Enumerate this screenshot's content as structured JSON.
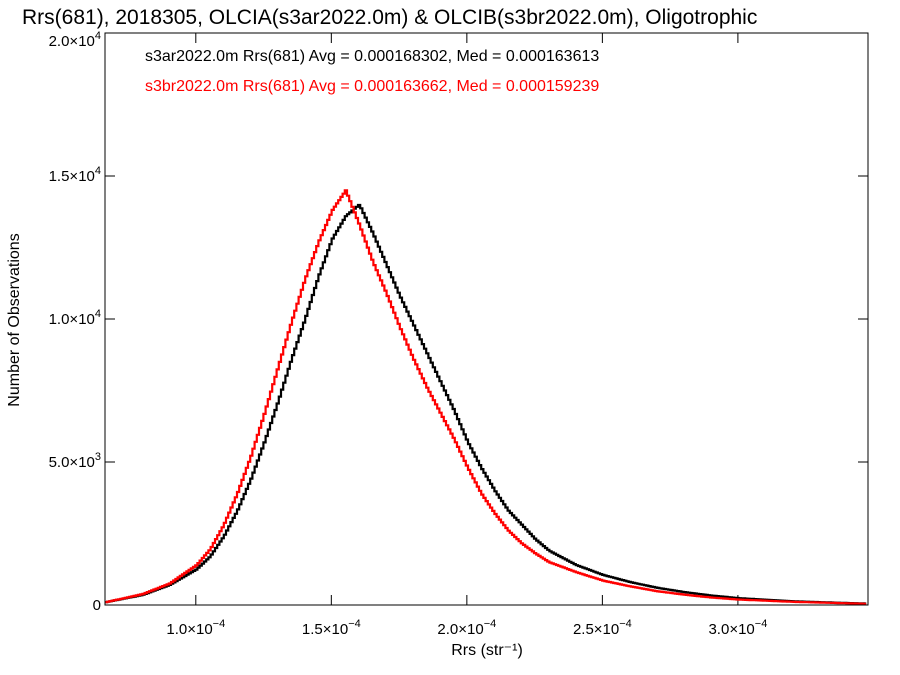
{
  "chart_data": {
    "type": "line",
    "title": "Rrs(681), 2018305, OLCIA(s3ar2022.0m) & OLCIB(s3br2022.0m), Oligotrophic",
    "xlabel": "Rrs (str⁻¹)",
    "ylabel": "Number of Observations",
    "xlim": [
      6.65e-05,
      0.000348
    ],
    "ylim": [
      0,
      20000
    ],
    "grid": false,
    "legend_position": "top-left",
    "x_ticks": [
      {
        "value": 0.0001,
        "mantissa": "1.0",
        "exp": "−4"
      },
      {
        "value": 0.00015,
        "mantissa": "1.5",
        "exp": "−4"
      },
      {
        "value": 0.0002,
        "mantissa": "2.0",
        "exp": "−4"
      },
      {
        "value": 0.00025,
        "mantissa": "2.5",
        "exp": "−4"
      },
      {
        "value": 0.0003,
        "mantissa": "3.0",
        "exp": "−4"
      }
    ],
    "y_ticks": [
      {
        "value": 0,
        "mantissa": "0",
        "exp": ""
      },
      {
        "value": 5000,
        "mantissa": "5.0",
        "exp": "3"
      },
      {
        "value": 10000,
        "mantissa": "1.0",
        "exp": "4"
      },
      {
        "value": 15000,
        "mantissa": "1.5",
        "exp": "4"
      },
      {
        "value": 20000,
        "mantissa": "2.0",
        "exp": "4"
      }
    ],
    "series": [
      {
        "name": "s3ar2022.0m Rrs(681)",
        "label": "s3ar2022.0m Rrs(681) Avg = 0.000168302, Med = 0.000163613",
        "color": "#000000",
        "points": [
          [
            6.65e-05,
            100
          ],
          [
            8e-05,
            350
          ],
          [
            9e-05,
            700
          ],
          [
            0.0001,
            1250
          ],
          [
            0.000105,
            1700
          ],
          [
            0.00011,
            2400
          ],
          [
            0.000115,
            3300
          ],
          [
            0.00012,
            4400
          ],
          [
            0.000125,
            5700
          ],
          [
            0.00013,
            7100
          ],
          [
            0.000135,
            8600
          ],
          [
            0.00014,
            10000
          ],
          [
            0.000145,
            11500
          ],
          [
            0.00015,
            12800
          ],
          [
            0.000155,
            13600
          ],
          [
            0.00016,
            14000
          ],
          [
            0.000165,
            13000
          ],
          [
            0.00017,
            11900
          ],
          [
            0.000175,
            10800
          ],
          [
            0.00018,
            9800
          ],
          [
            0.000185,
            8800
          ],
          [
            0.00019,
            7800
          ],
          [
            0.000195,
            6800
          ],
          [
            0.0002,
            5700
          ],
          [
            0.000205,
            4800
          ],
          [
            0.00021,
            4000
          ],
          [
            0.000215,
            3300
          ],
          [
            0.00022,
            2800
          ],
          [
            0.000225,
            2300
          ],
          [
            0.00023,
            1900
          ],
          [
            0.00024,
            1400
          ],
          [
            0.00025,
            1050
          ],
          [
            0.00026,
            800
          ],
          [
            0.00027,
            600
          ],
          [
            0.00028,
            450
          ],
          [
            0.00029,
            330
          ],
          [
            0.0003,
            240
          ],
          [
            0.00032,
            130
          ],
          [
            0.00034,
            70
          ],
          [
            0.000348,
            50
          ]
        ]
      },
      {
        "name": "s3br2022.0m Rrs(681)",
        "label": "s3br2022.0m Rrs(681) Avg = 0.000163662, Med = 0.000159239",
        "color": "#ff0000",
        "points": [
          [
            6.65e-05,
            100
          ],
          [
            8e-05,
            380
          ],
          [
            9e-05,
            750
          ],
          [
            0.0001,
            1400
          ],
          [
            0.000105,
            1950
          ],
          [
            0.00011,
            2800
          ],
          [
            0.000115,
            3900
          ],
          [
            0.00012,
            5200
          ],
          [
            0.000125,
            6700
          ],
          [
            0.00013,
            8300
          ],
          [
            0.000135,
            9900
          ],
          [
            0.00014,
            11400
          ],
          [
            0.000145,
            12700
          ],
          [
            0.00015,
            13800
          ],
          [
            0.000155,
            14500
          ],
          [
            0.00016,
            13300
          ],
          [
            0.000165,
            12000
          ],
          [
            0.00017,
            10900
          ],
          [
            0.000175,
            9700
          ],
          [
            0.00018,
            8600
          ],
          [
            0.000185,
            7600
          ],
          [
            0.00019,
            6700
          ],
          [
            0.000195,
            5800
          ],
          [
            0.0002,
            4800
          ],
          [
            0.000205,
            3900
          ],
          [
            0.00021,
            3200
          ],
          [
            0.000215,
            2600
          ],
          [
            0.00022,
            2150
          ],
          [
            0.000225,
            1800
          ],
          [
            0.00023,
            1500
          ],
          [
            0.00024,
            1150
          ],
          [
            0.00025,
            850
          ],
          [
            0.00026,
            650
          ],
          [
            0.00027,
            480
          ],
          [
            0.00028,
            360
          ],
          [
            0.00029,
            260
          ],
          [
            0.0003,
            190
          ],
          [
            0.00032,
            110
          ],
          [
            0.00034,
            60
          ],
          [
            0.000348,
            40
          ]
        ]
      }
    ]
  }
}
